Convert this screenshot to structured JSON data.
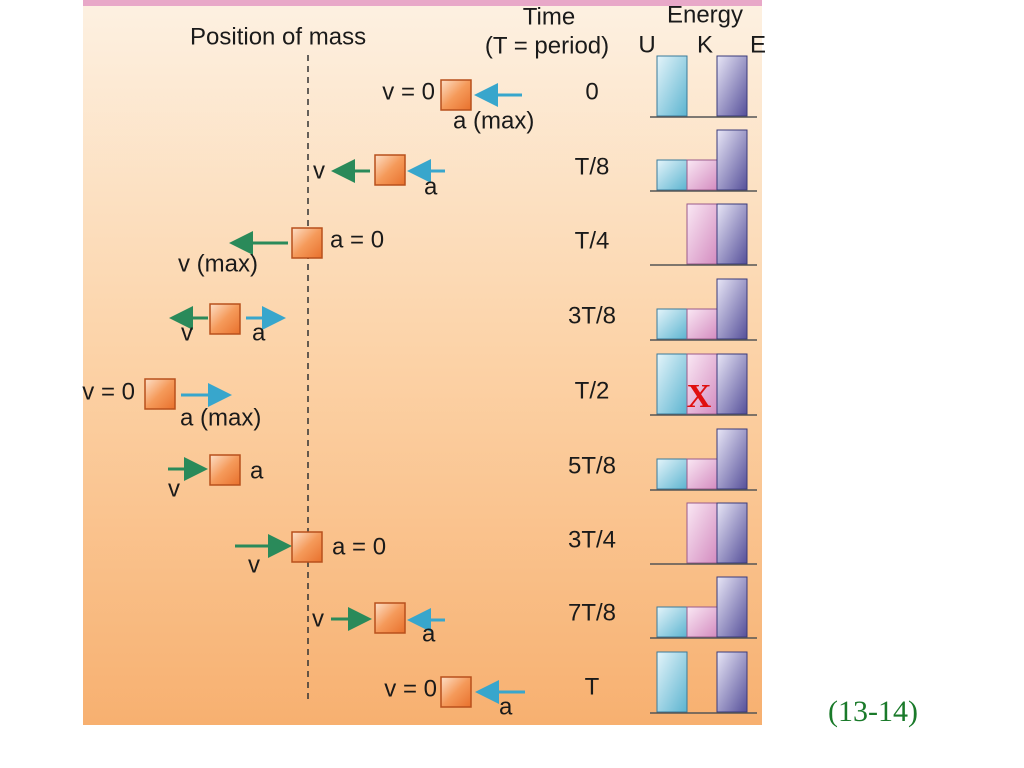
{
  "header": {
    "position": "Position of mass",
    "time": "Time",
    "period": "(T = period)",
    "energy": "Energy",
    "u": "U",
    "k": "K",
    "e": "E"
  },
  "rows": [
    {
      "time": "0",
      "labels": [
        "v = 0",
        "a (max)"
      ]
    },
    {
      "time": "T/8",
      "labels": [
        "v",
        "a"
      ]
    },
    {
      "time": "T/4",
      "labels": [
        "a = 0",
        "v (max)"
      ]
    },
    {
      "time": "3T/8",
      "labels": [
        "v",
        "a"
      ]
    },
    {
      "time": "T/2",
      "labels": [
        "v = 0",
        "a (max)"
      ]
    },
    {
      "time": "5T/8",
      "labels": [
        "v",
        "a"
      ]
    },
    {
      "time": "3T/4",
      "labels": [
        "a = 0",
        "v"
      ]
    },
    {
      "time": "7T/8",
      "labels": [
        "v",
        "a"
      ]
    },
    {
      "time": "T",
      "labels": [
        "v = 0",
        "a"
      ]
    }
  ],
  "marker": "X",
  "caption": "(13-14)"
}
